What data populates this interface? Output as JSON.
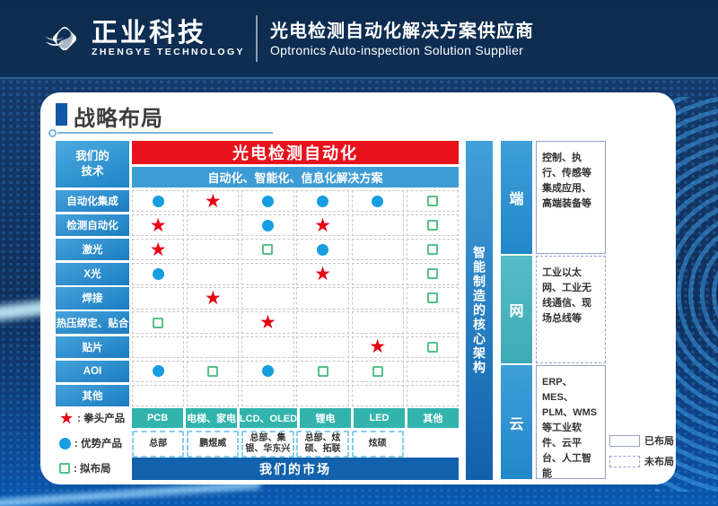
{
  "header": {
    "logo_cn": "正业科技",
    "logo_en": "ZHENGYE TECHNOLOGY",
    "tagline_cn": "光电检测自动化解决方案供应商",
    "tagline_en": "Optronics Auto-inspection Solution Supplier"
  },
  "page_title": "战略布局",
  "matrix": {
    "corner_header": [
      "我们的",
      "技术"
    ],
    "top_banner": "光电检测自动化",
    "sub_banner": "自动化、智能化、信息化解决方案",
    "bottom_banner": "我们的市场",
    "technologies": [
      "自动化集成",
      "检测自动化",
      "激光",
      "X光",
      "焊接",
      "热压绑定、贴合",
      "贴片",
      "AOI",
      "其他"
    ],
    "markets": [
      "PCB",
      "电梯、家电",
      "LCD、OLED",
      "锂电",
      "LED",
      "其他"
    ],
    "market_companies": [
      "总部",
      "鹏煜威",
      "总部、集银、华东兴",
      "总部、炫硕、拓联",
      "炫硕",
      ""
    ],
    "cells": [
      [
        "dot",
        "star",
        "dot",
        "dot",
        "dot",
        "planned"
      ],
      [
        "star",
        "",
        "dot",
        "star",
        "",
        "planned"
      ],
      [
        "star",
        "",
        "planned",
        "dot",
        "",
        "planned"
      ],
      [
        "dot",
        "",
        "",
        "star",
        "",
        "planned"
      ],
      [
        "",
        "star",
        "",
        "",
        "",
        "planned"
      ],
      [
        "planned",
        "",
        "star",
        "",
        "",
        ""
      ],
      [
        "",
        "",
        "",
        "",
        "star",
        "planned"
      ],
      [
        "dot",
        "planned",
        "dot",
        "planned",
        "planned",
        ""
      ],
      [
        "",
        "",
        "",
        "",
        "",
        ""
      ]
    ]
  },
  "legend_left": [
    {
      "symbol": "star",
      "label": "拳头产品"
    },
    {
      "symbol": "dot",
      "label": "优势产品"
    },
    {
      "symbol": "planned",
      "label": "拟布局"
    }
  ],
  "right_panel": {
    "vertical_title": "智能制造的核心架构",
    "sections": [
      {
        "label": "端",
        "color": "blue",
        "state": "deployed",
        "desc": "控制、执行、传感等集成应用、高端装备等"
      },
      {
        "label": "网",
        "color": "teal",
        "state": "pending",
        "desc": "工业以太网、工业无线通信、现场总线等"
      },
      {
        "label": "云",
        "color": "blue",
        "state": "deployed",
        "desc": "ERP、MES、PLM、WMS等工业软件、云平台、人工智能"
      }
    ],
    "legend": [
      {
        "style": "solid",
        "label": "已布局"
      },
      {
        "style": "dashed",
        "label": "未布局"
      }
    ]
  },
  "colors": {
    "accent_red": "#e8121d",
    "star_red": "#e60012",
    "dot_blue": "#179de0",
    "planned_green": "#55c188",
    "market_teal": "#32b4ad",
    "banner_blue": "#3e9cd5",
    "deep_blue": "#1261ad",
    "header_navy": "#0e2f55"
  }
}
